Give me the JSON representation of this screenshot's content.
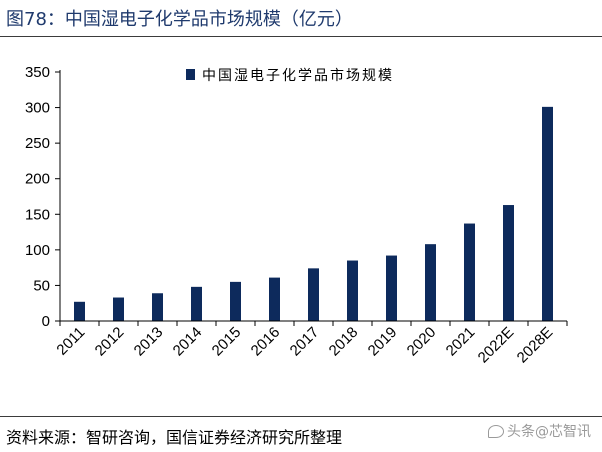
{
  "figure": {
    "title": "图78：中国湿电子化学品市场规模（亿元）"
  },
  "chart_data": {
    "type": "bar",
    "categories": [
      "2011",
      "2012",
      "2013",
      "2014",
      "2015",
      "2016",
      "2017",
      "2018",
      "2019",
      "2020",
      "2021",
      "2022E",
      "2028E"
    ],
    "series": [
      {
        "name": "中国湿电子化学品市场规模",
        "values": [
          27,
          33,
          39,
          48,
          55,
          61,
          74,
          85,
          92,
          108,
          137,
          163,
          301
        ]
      }
    ],
    "title": "",
    "xlabel": "",
    "ylabel": "",
    "ylim": [
      0,
      350
    ],
    "yticks": [
      0,
      50,
      100,
      150,
      200,
      250,
      300,
      350
    ],
    "grid": false,
    "legend_position": "top-center",
    "bar_color": "#0d2a5c"
  },
  "source": {
    "text": "资料来源：智研咨询，国信证券经济研究所整理"
  },
  "watermark": {
    "text": "头条@芯智讯"
  }
}
